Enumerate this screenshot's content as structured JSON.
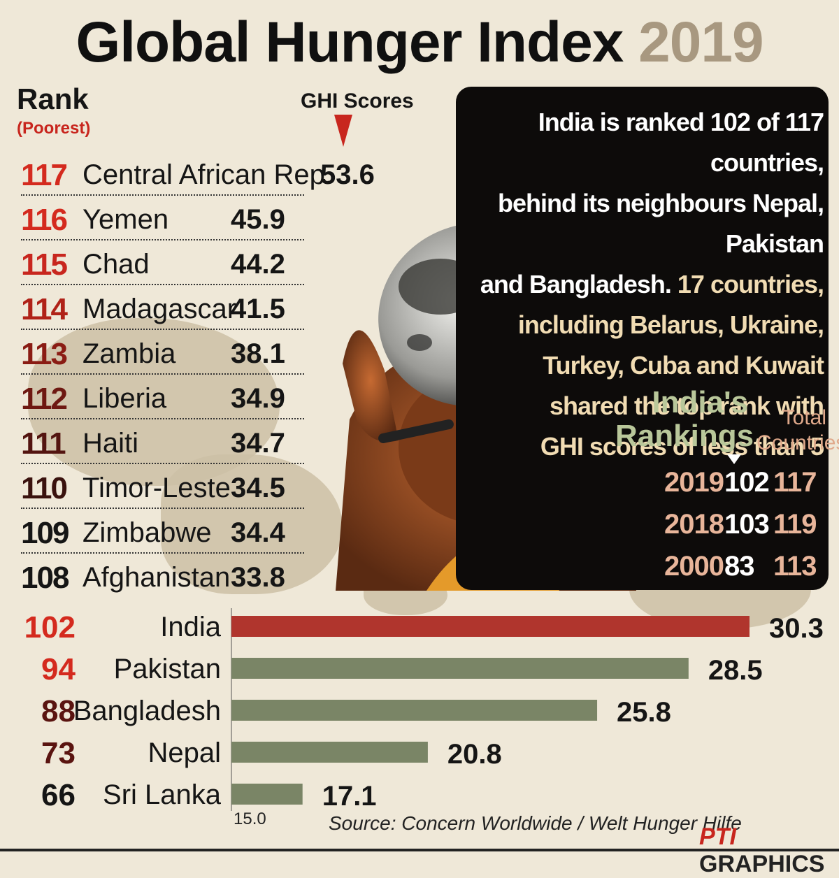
{
  "title": {
    "main": "Global Hunger Index",
    "year": "2019"
  },
  "rank_header": "Rank",
  "rank_subheader": "(Poorest)",
  "scores_header": "GHI Scores",
  "poorest_list": [
    {
      "rank": "117",
      "country": "Central African Rep.",
      "score": "53.6"
    },
    {
      "rank": "116",
      "country": "Yemen",
      "score": "45.9"
    },
    {
      "rank": "115",
      "country": "Chad",
      "score": "44.2"
    },
    {
      "rank": "114",
      "country": "Madagascar",
      "score": "41.5"
    },
    {
      "rank": "113",
      "country": "Zambia",
      "score": "38.1"
    },
    {
      "rank": "112",
      "country": "Liberia",
      "score": "34.9"
    },
    {
      "rank": "111",
      "country": "Haiti",
      "score": "34.7"
    },
    {
      "rank": "110",
      "country": "Timor-Leste",
      "score": "34.5"
    },
    {
      "rank": "109",
      "country": "Zimbabwe",
      "score": "34.4"
    },
    {
      "rank": "108",
      "country": "Afghanistan",
      "score": "33.8"
    }
  ],
  "info": {
    "line1": "India is ranked 102 of 117 countries,",
    "line2": "behind its neighbours Nepal, Pakistan",
    "line3a": "and Bangladesh. ",
    "line3b": "17 countries,",
    "line4": "including Belarus, Ukraine,",
    "line5": "Turkey, Cuba and Kuwait",
    "line6": "shared the top rank with",
    "line7": "GHI scores of less than 5"
  },
  "india_rankings": {
    "title_line1": "India's",
    "title_line2": "Rankings",
    "total_line1": "Total",
    "total_line2": "Countries",
    "rows": [
      {
        "year": "2019",
        "rank": "102",
        "total": "117"
      },
      {
        "year": "2018",
        "rank": "103",
        "total": "119"
      },
      {
        "year": "2000",
        "rank": "83",
        "total": "113"
      }
    ]
  },
  "chart_data": {
    "type": "bar",
    "orientation": "horizontal",
    "categories": [
      "India",
      "Pakistan",
      "Bangladesh",
      "Nepal",
      "Sri Lanka"
    ],
    "ranks": [
      "102",
      "94",
      "88",
      "73",
      "66"
    ],
    "values": [
      30.3,
      28.5,
      25.8,
      20.8,
      17.1
    ],
    "value_labels": [
      "30.3",
      "28.5",
      "25.8",
      "20.8",
      "17.1"
    ],
    "axis_start_label": "15.0",
    "xlim": [
      15.0,
      30.3
    ],
    "colors": {
      "highlight": "#b0352d",
      "other": "#7a8566"
    }
  },
  "source": "Source:  Concern Worldwide / Welt Hunger Hilfe",
  "credit": {
    "pti": "PTI",
    "graphics": "GRAPHICS"
  },
  "colors": {
    "rank_red": "#d42a1e",
    "rank_dark": "#5a1410",
    "rank_black": "#151515"
  }
}
